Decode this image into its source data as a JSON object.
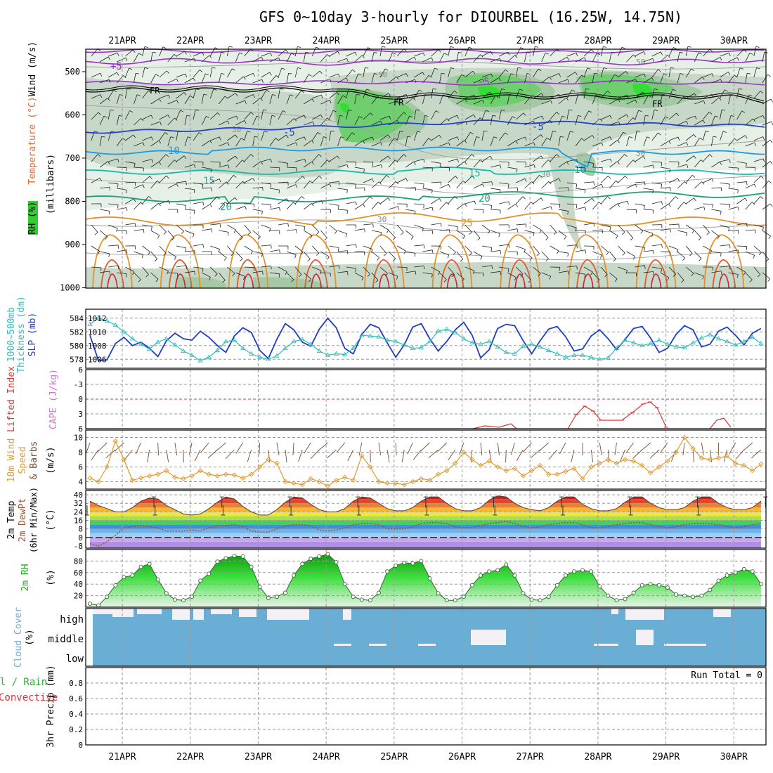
{
  "title": "GFS 0~10day 3-hourly for DIOURBEL (16.25W, 14.75N)",
  "date_labels": [
    "21APR",
    "22APR",
    "23APR",
    "24APR",
    "25APR",
    "26APR",
    "27APR",
    "28APR",
    "29APR",
    "30APR"
  ],
  "colors": {
    "grid": "#999999",
    "frame": "#000000",
    "cloud": "#6aaed6",
    "rh_fill": "#22cc22",
    "rh_line": "#336633",
    "slp": "#1f3fbf",
    "thick": "#33bbbb",
    "li": "#dd3333",
    "wind": "#e09a30",
    "dewpt": "#a0522d"
  },
  "panels": {
    "upper": {
      "ylabel_parts": [
        "RH (%)",
        "Temperature (°C)",
        "Wind (m/s)"
      ],
      "ylabel2": "(millibars)",
      "yticks": [
        500,
        600,
        700,
        800,
        900,
        1000
      ],
      "contour_labels": {
        "t_plus5": "+5",
        "fr": "FR",
        "m5": "-5",
        "p10": "10",
        "p15": "15",
        "p20": "20",
        "p25": "25",
        "rh30": "30",
        "rh50": "50"
      }
    },
    "slp": {
      "ylabel_left": "1000~500mb",
      "ylabel_left2": "Thickness (dm)",
      "ylabel_right": "SLP (mb)",
      "yticks_left": [
        578,
        580,
        582,
        584
      ],
      "yticks_right": [
        1006,
        1008,
        1010,
        1012
      ]
    },
    "cape": {
      "ylabel_left": "Lifted Index",
      "ylabel_right": "CAPE (J/kg)",
      "yticks": [
        -6,
        -3,
        0,
        3,
        6
      ]
    },
    "wind": {
      "ylabel_parts": [
        "10m Wind",
        "Speed",
        "& Barbs",
        "(m/s)"
      ],
      "yticks": [
        4,
        6,
        8,
        10
      ]
    },
    "temp": {
      "ylabel_parts": [
        "2m Temp",
        "2m DewPt",
        "(6hr Min/Max)",
        "(°C)"
      ],
      "yticks": [
        -8,
        0,
        8,
        16,
        24,
        32,
        40
      ]
    },
    "rh": {
      "ylabel_parts": [
        "2m RH",
        "(%)"
      ],
      "yticks": [
        20,
        40,
        60,
        80
      ]
    },
    "cloud": {
      "ylabel_parts": [
        "Cloud Cover",
        "(%)"
      ],
      "levels": [
        "high",
        "middle",
        "low"
      ]
    },
    "precip": {
      "ylabel_parts": [
        "Total / Rain",
        "Convective",
        "3hr Precip (mm)"
      ],
      "yticks": [
        0,
        0.2,
        0.4,
        0.6,
        0.8
      ],
      "run_total": "Run Total = 0"
    }
  },
  "chart_data": [
    {
      "type": "line",
      "name": "slp",
      "series": [
        {
          "name": "SLP (mb)",
          "values": [
            1009.5,
            1005.8,
            1005.9,
            1008.3,
            1009.2,
            1008.0,
            1008.5,
            1007.6,
            1006.4,
            1008.7,
            1009.8,
            1009.0,
            1008.8,
            1010.1,
            1009.2,
            1008.0,
            1007.0,
            1009.4,
            1010.6,
            1009.9,
            1007.3,
            1006.1,
            1008.9,
            1011.2,
            1010.3,
            1008.5,
            1007.9,
            1010.4,
            1012.0,
            1010.6,
            1007.6,
            1006.8,
            1009.6,
            1011.1,
            1010.6,
            1008.4,
            1006.3,
            1008.1,
            1010.7,
            1011.2,
            1009.0,
            1007.2,
            1008.6,
            1010.3,
            1011.4,
            1009.5,
            1006.2,
            1007.4,
            1010.5,
            1011.1,
            1010.9,
            1008.7,
            1006.8,
            1008.7,
            1010.4,
            1010.8,
            1009.3,
            1007.2,
            1007.5,
            1009.4,
            1010.3,
            1009.0,
            1007.4,
            1008.9,
            1010.5,
            1010.8,
            1009.1,
            1007.0,
            1007.6,
            1009.6,
            1010.9,
            1010.3,
            1007.8,
            1008.2,
            1010.1,
            1010.7,
            1009.5,
            1008.1,
            1009.8,
            1010.5
          ]
        },
        {
          "name": "Thickness (dm)",
          "values": [
            583.1,
            584.0,
            583.6,
            583.0,
            582.0,
            581.0,
            580.2,
            579.5,
            580.5,
            581.0,
            580.1,
            579.2,
            578.6,
            577.8,
            578.3,
            579.3,
            580.6,
            580.8,
            579.6,
            578.8,
            578.3,
            578.0,
            578.5,
            579.6,
            580.6,
            580.9,
            580.2,
            579.2,
            578.6,
            578.8,
            578.7,
            579.6,
            581.5,
            581.4,
            581.3,
            580.8,
            580.6,
            580.1,
            579.6,
            579.7,
            580.6,
            582.1,
            582.4,
            581.9,
            581.0,
            580.4,
            580.2,
            580.6,
            579.8,
            579.0,
            578.8,
            579.9,
            580.2,
            579.8,
            579.3,
            578.8,
            578.3,
            578.6,
            578.6,
            578.3,
            578.0,
            578.2,
            579.6,
            580.8,
            580.4,
            580.0,
            580.3,
            580.8,
            580.2,
            579.8,
            579.7,
            580.4,
            581.1,
            581.6,
            581.0,
            580.6,
            580.1,
            580.6,
            581.2,
            580.3
          ]
        }
      ],
      "ylim_left": [
        577,
        585
      ],
      "ylim_right": [
        1005,
        1013
      ]
    },
    {
      "type": "line",
      "name": "lifted_index",
      "series": [
        {
          "name": "Lifted Index",
          "values": [
            null,
            null,
            null,
            null,
            null,
            null,
            null,
            null,
            null,
            null,
            null,
            null,
            null,
            null,
            null,
            null,
            null,
            null,
            null,
            null,
            null,
            null,
            null,
            null,
            null,
            null,
            null,
            null,
            null,
            null,
            null,
            null,
            null,
            null,
            null,
            null,
            null,
            null,
            null,
            null,
            null,
            null,
            null,
            null,
            5.8,
            5.2,
            4.8,
            5.0,
            null,
            null,
            null,
            null,
            null,
            null,
            null,
            null,
            null,
            null,
            null,
            null,
            null,
            null,
            null,
            null,
            null,
            null,
            null,
            null,
            null,
            null,
            null,
            null,
            null,
            null,
            null,
            null,
            null,
            null,
            null,
            null
          ]
        }
      ],
      "ylim": [
        6,
        -6
      ]
    },
    {
      "type": "line",
      "name": "wind_speed",
      "series": [
        {
          "name": "10m Wind Speed",
          "values": [
            4.5,
            4.0,
            6.0,
            9.5,
            7.0,
            4.2,
            4.5,
            4.8,
            5.0,
            5.5,
            4.6,
            4.4,
            4.8,
            5.5,
            5.0,
            4.8,
            5.0,
            4.9,
            4.5,
            5.0,
            6.0,
            7.0,
            6.5,
            4.0,
            3.8,
            3.6,
            4.4,
            4.0,
            3.4,
            4.2,
            4.6,
            4.2,
            7.5,
            6.0,
            4.0,
            3.8,
            3.8,
            3.6,
            4.0,
            4.4,
            4.2,
            5.0,
            5.5,
            6.5,
            8.0,
            7.0,
            6.2,
            6.8,
            6.0,
            5.5,
            5.8,
            4.8,
            5.5,
            6.2,
            5.0,
            5.0,
            5.4,
            5.8,
            4.4,
            6.0,
            6.5,
            7.0,
            6.5,
            7.0,
            6.8,
            6.2,
            5.2,
            6.0,
            6.8,
            8.0,
            10.0,
            8.5,
            7.2,
            7.0,
            7.2,
            7.5,
            6.5,
            6.2,
            5.5,
            6.4
          ]
        }
      ],
      "ylim": [
        3,
        11
      ]
    },
    {
      "type": "area",
      "name": "temperature",
      "series": [
        {
          "name": "2m Temp",
          "values": [
            34,
            30,
            27,
            24,
            24,
            28,
            34,
            37,
            36,
            30,
            26,
            22,
            21,
            22,
            27,
            33,
            38,
            36,
            29,
            24,
            21,
            21,
            26,
            33,
            38,
            37,
            31,
            26,
            24,
            24,
            27,
            34,
            38,
            37,
            32,
            27,
            25,
            25,
            28,
            34,
            38,
            38,
            32,
            27,
            25,
            25,
            28,
            35,
            39,
            38,
            32,
            28,
            26,
            25,
            28,
            34,
            38,
            38,
            31,
            27,
            25,
            25,
            27,
            33,
            38,
            38,
            32,
            28,
            26,
            26,
            28,
            34,
            38,
            38,
            32,
            28,
            26,
            26,
            28,
            34
          ]
        },
        {
          "name": "2m DewPt",
          "values": [
            -6,
            -8,
            -4,
            2,
            9,
            10,
            11,
            10,
            9,
            6,
            6,
            6,
            7,
            6,
            9,
            11,
            11,
            12,
            10,
            6,
            5,
            5,
            8,
            11,
            12,
            12,
            11,
            7,
            6,
            7,
            9,
            12,
            13,
            13,
            12,
            8,
            8,
            8,
            10,
            13,
            14,
            14,
            13,
            10,
            9,
            9,
            11,
            13,
            14,
            15,
            13,
            10,
            9,
            10,
            12,
            13,
            14,
            14,
            12,
            9,
            9,
            10,
            12,
            13,
            14,
            14,
            12,
            10,
            9,
            10,
            12,
            13,
            13,
            13,
            12,
            10,
            9,
            10,
            12,
            13
          ]
        }
      ],
      "ylim": [
        -10,
        44
      ]
    },
    {
      "type": "area",
      "name": "rh",
      "series": [
        {
          "name": "2m RH",
          "values": [
            6,
            3,
            18,
            38,
            52,
            55,
            70,
            75,
            48,
            24,
            13,
            12,
            18,
            46,
            58,
            79,
            85,
            89,
            88,
            70,
            35,
            16,
            18,
            25,
            55,
            75,
            84,
            88,
            92,
            78,
            40,
            18,
            13,
            12,
            25,
            62,
            72,
            77,
            76,
            80,
            50,
            24,
            12,
            12,
            18,
            38,
            55,
            62,
            64,
            74,
            55,
            24,
            13,
            12,
            18,
            38,
            55,
            62,
            64,
            62,
            36,
            20,
            12,
            14,
            25,
            38,
            40,
            38,
            34,
            22,
            20,
            18,
            20,
            30,
            46,
            55,
            60,
            66,
            62,
            40
          ]
        }
      ],
      "ylim": [
        0,
        100
      ]
    },
    {
      "type": "bar",
      "name": "precip",
      "series": [
        {
          "name": "3hr Precip",
          "values": []
        }
      ],
      "ylim": [
        0,
        1
      ]
    }
  ]
}
